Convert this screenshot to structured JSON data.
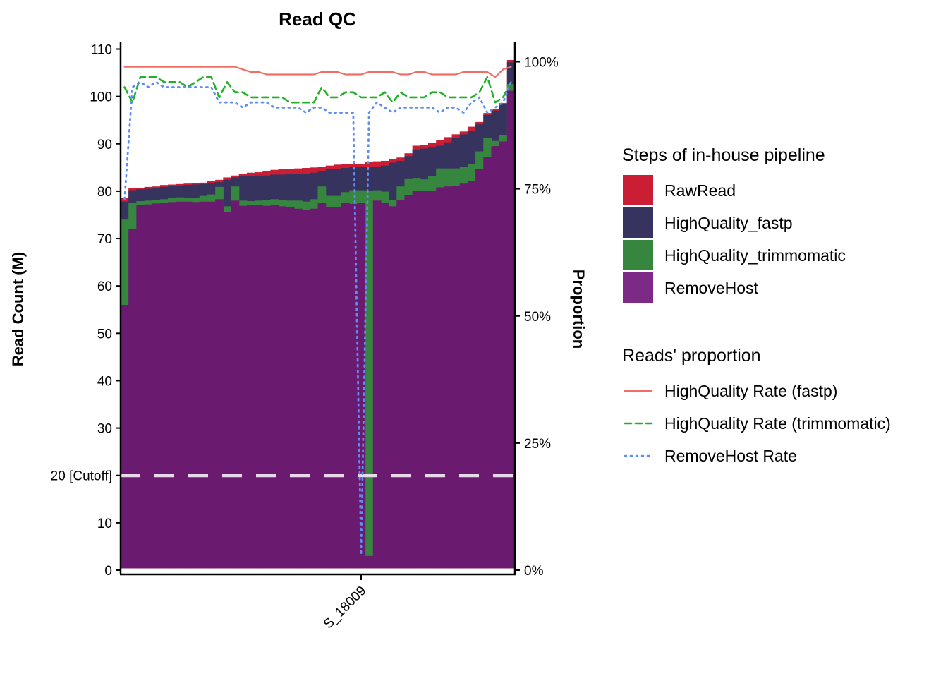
{
  "chart_data": {
    "type": "bar",
    "title": "Read QC",
    "ylabel": "Read Count (M)",
    "y2label": "Proportion",
    "ylim": [
      0,
      110
    ],
    "yticks": [
      "0",
      "10",
      "20 [Cutoff]",
      "30",
      "40",
      "50",
      "60",
      "70",
      "80",
      "90",
      "100",
      "110"
    ],
    "y2lim": [
      0,
      1
    ],
    "y2ticks": [
      "0%",
      "25%",
      "50%",
      "75%",
      "100%"
    ],
    "xtick_label": "S_18009",
    "xtick_index": 30,
    "cutoff": 20,
    "legend_placement": "right",
    "grid": false,
    "bar_legend_title": "Steps of in-house pipeline",
    "line_legend_title": "Reads' proportion",
    "bar_series": [
      {
        "name": "RawRead",
        "color": "#cb1d34"
      },
      {
        "name": "HighQuality_fastp",
        "color": "#36335f"
      },
      {
        "name": "HighQuality_trimmomatic",
        "color": "#36863f"
      },
      {
        "name": "RemoveHost",
        "color": "#7c2a86"
      }
    ],
    "line_series": [
      {
        "name": "HighQuality Rate (fastp)",
        "color": "#f06e64",
        "dash": "solid"
      },
      {
        "name": "HighQuality Rate (trimmomatic)",
        "color": "#22b02a",
        "dash": "dashed"
      },
      {
        "name": "RemoveHost Rate",
        "color": "#5f8ef2",
        "dash": "dotted"
      }
    ],
    "raw": [
      78.6,
      80.6,
      80.7,
      80.9,
      81.0,
      81.3,
      81.4,
      81.5,
      81.6,
      81.7,
      81.8,
      82.1,
      82.4,
      82.9,
      83.3,
      83.7,
      83.9,
      84.0,
      84.2,
      84.5,
      84.7,
      84.7,
      84.8,
      84.9,
      85.0,
      85.2,
      85.4,
      85.6,
      85.7,
      85.7,
      85.8,
      86.1,
      86.3,
      86.4,
      86.8,
      87.1,
      88.0,
      89.6,
      89.8,
      90.2,
      90.8,
      91.4,
      92.0,
      92.6,
      93.6,
      94.6,
      96.5,
      97.4,
      98.6,
      107.7
    ],
    "fastp": [
      77.8,
      80.2,
      80.4,
      80.5,
      80.6,
      80.9,
      81.1,
      81.2,
      81.3,
      81.4,
      81.5,
      81.7,
      81.9,
      82.4,
      82.9,
      83.2,
      83.2,
      83.3,
      83.3,
      83.5,
      83.5,
      83.6,
      83.7,
      83.7,
      83.9,
      84.2,
      84.6,
      84.7,
      84.9,
      85.1,
      85.1,
      85.1,
      85.2,
      85.4,
      86.0,
      86.4,
      87.4,
      88.8,
      89.0,
      89.2,
      89.6,
      90.3,
      91.2,
      92.0,
      92.7,
      94.1,
      96.1,
      97.0,
      98.3,
      107.2
    ],
    "trimm": [
      74.0,
      77.6,
      77.9,
      78.0,
      78.2,
      78.3,
      78.6,
      78.7,
      78.6,
      78.5,
      79.0,
      79.3,
      80.9,
      76.8,
      81.0,
      78.0,
      77.9,
      78.0,
      78.2,
      78.3,
      78.2,
      78.0,
      78.0,
      77.8,
      78.3,
      81.0,
      79.0,
      79.0,
      79.8,
      80.2,
      80.2,
      80.0,
      80.2,
      79.9,
      78.2,
      81.0,
      82.7,
      82.8,
      82.5,
      83.2,
      84.8,
      84.8,
      84.8,
      85.2,
      85.8,
      88.4,
      91.3,
      90.6,
      91.9,
      102.6
    ],
    "host": [
      56.0,
      72.0,
      77.1,
      77.2,
      77.4,
      77.6,
      77.7,
      77.8,
      77.8,
      77.7,
      77.8,
      77.8,
      78.3,
      75.6,
      78.0,
      76.9,
      77.0,
      77.0,
      76.9,
      77.0,
      76.8,
      76.7,
      76.3,
      76.0,
      76.3,
      77.5,
      76.6,
      76.7,
      77.5,
      77.3,
      77.6,
      3.0,
      78.0,
      77.6,
      76.8,
      78.2,
      79.1,
      80.1,
      80.0,
      80.0,
      80.8,
      81.0,
      81.1,
      81.6,
      82.1,
      84.7,
      87.2,
      89.5,
      90.5,
      101.2
    ],
    "fastp_rate": [
      0.99,
      0.99,
      0.99,
      0.99,
      0.99,
      0.99,
      0.99,
      0.99,
      0.99,
      0.99,
      0.99,
      0.99,
      0.99,
      0.99,
      0.99,
      0.985,
      0.98,
      0.98,
      0.975,
      0.975,
      0.975,
      0.975,
      0.975,
      0.975,
      0.975,
      0.98,
      0.98,
      0.98,
      0.975,
      0.975,
      0.975,
      0.98,
      0.98,
      0.98,
      0.98,
      0.975,
      0.975,
      0.98,
      0.98,
      0.975,
      0.975,
      0.975,
      0.975,
      0.98,
      0.98,
      0.98,
      0.98,
      0.97,
      0.985,
      0.99
    ],
    "trimm_rate": [
      0.95,
      0.92,
      0.97,
      0.97,
      0.97,
      0.96,
      0.96,
      0.96,
      0.95,
      0.96,
      0.97,
      0.97,
      0.93,
      0.96,
      0.94,
      0.94,
      0.93,
      0.93,
      0.93,
      0.93,
      0.93,
      0.92,
      0.92,
      0.92,
      0.92,
      0.95,
      0.93,
      0.93,
      0.94,
      0.94,
      0.93,
      0.93,
      0.93,
      0.94,
      0.92,
      0.94,
      0.93,
      0.93,
      0.93,
      0.94,
      0.94,
      0.93,
      0.93,
      0.93,
      0.93,
      0.94,
      0.97,
      0.92,
      0.93,
      0.96
    ],
    "host_rate": [
      0.73,
      0.95,
      0.96,
      0.95,
      0.96,
      0.95,
      0.95,
      0.95,
      0.95,
      0.95,
      0.95,
      0.95,
      0.92,
      0.92,
      0.92,
      0.91,
      0.92,
      0.92,
      0.92,
      0.91,
      0.91,
      0.91,
      0.91,
      0.9,
      0.91,
      0.91,
      0.9,
      0.9,
      0.9,
      0.9,
      0.03,
      0.9,
      0.92,
      0.91,
      0.9,
      0.91,
      0.91,
      0.91,
      0.91,
      0.91,
      0.9,
      0.91,
      0.91,
      0.9,
      0.92,
      0.93,
      0.9,
      0.91,
      0.92,
      0.96
    ]
  }
}
